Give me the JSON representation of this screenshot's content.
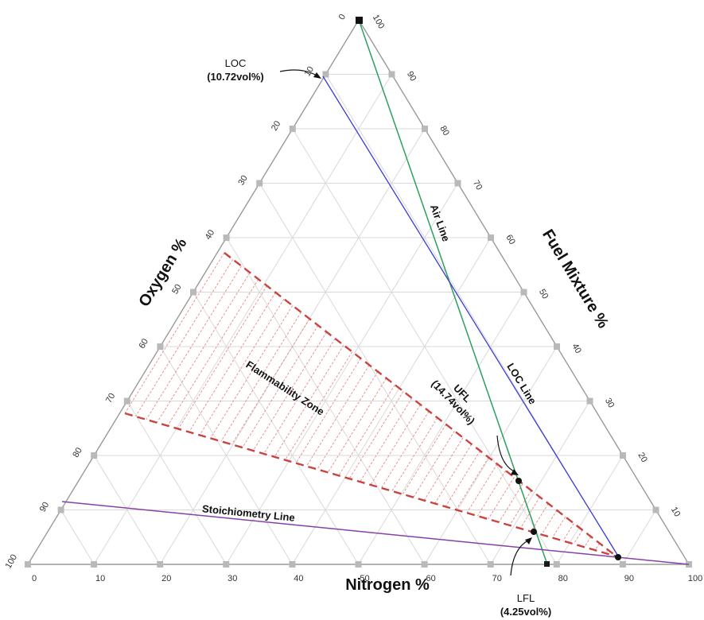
{
  "axes": {
    "oxygen_title": "Oxygen %",
    "fuel_title": "Fuel Mixture %",
    "nitrogen_title": "Nitrogen %",
    "oxygen_ticks": [
      "0",
      "10",
      "20",
      "30",
      "40",
      "50",
      "60",
      "70",
      "80",
      "90",
      "100"
    ],
    "fuel_ticks": [
      "100",
      "90",
      "80",
      "70",
      "60",
      "50",
      "40",
      "30",
      "20",
      "10"
    ],
    "nitrogen_ticks": [
      "0",
      "10",
      "20",
      "30",
      "40",
      "50",
      "60",
      "70",
      "80",
      "90",
      "100"
    ]
  },
  "annotations": {
    "loc_label": "LOC",
    "loc_value": "(10.72vol%)",
    "ufl_label": "UFL",
    "ufl_value": "(14.74vol%)",
    "lfl_label": "LFL",
    "lfl_value": "(4.25vol%)",
    "flammability_zone": "Flammability Zone",
    "stoichiometry_line": "Stoichiometry Line",
    "air_line": "Air Line",
    "loc_line": "LOC Line"
  },
  "colors": {
    "air_line": "#2ca05a",
    "loc_line": "#3a3ad8",
    "stoichiometry_line": "#8a3fa8",
    "flammability_zone": "#d9534f",
    "grid": "#d9d9d9",
    "triangle": "#9a9a9a"
  }
}
